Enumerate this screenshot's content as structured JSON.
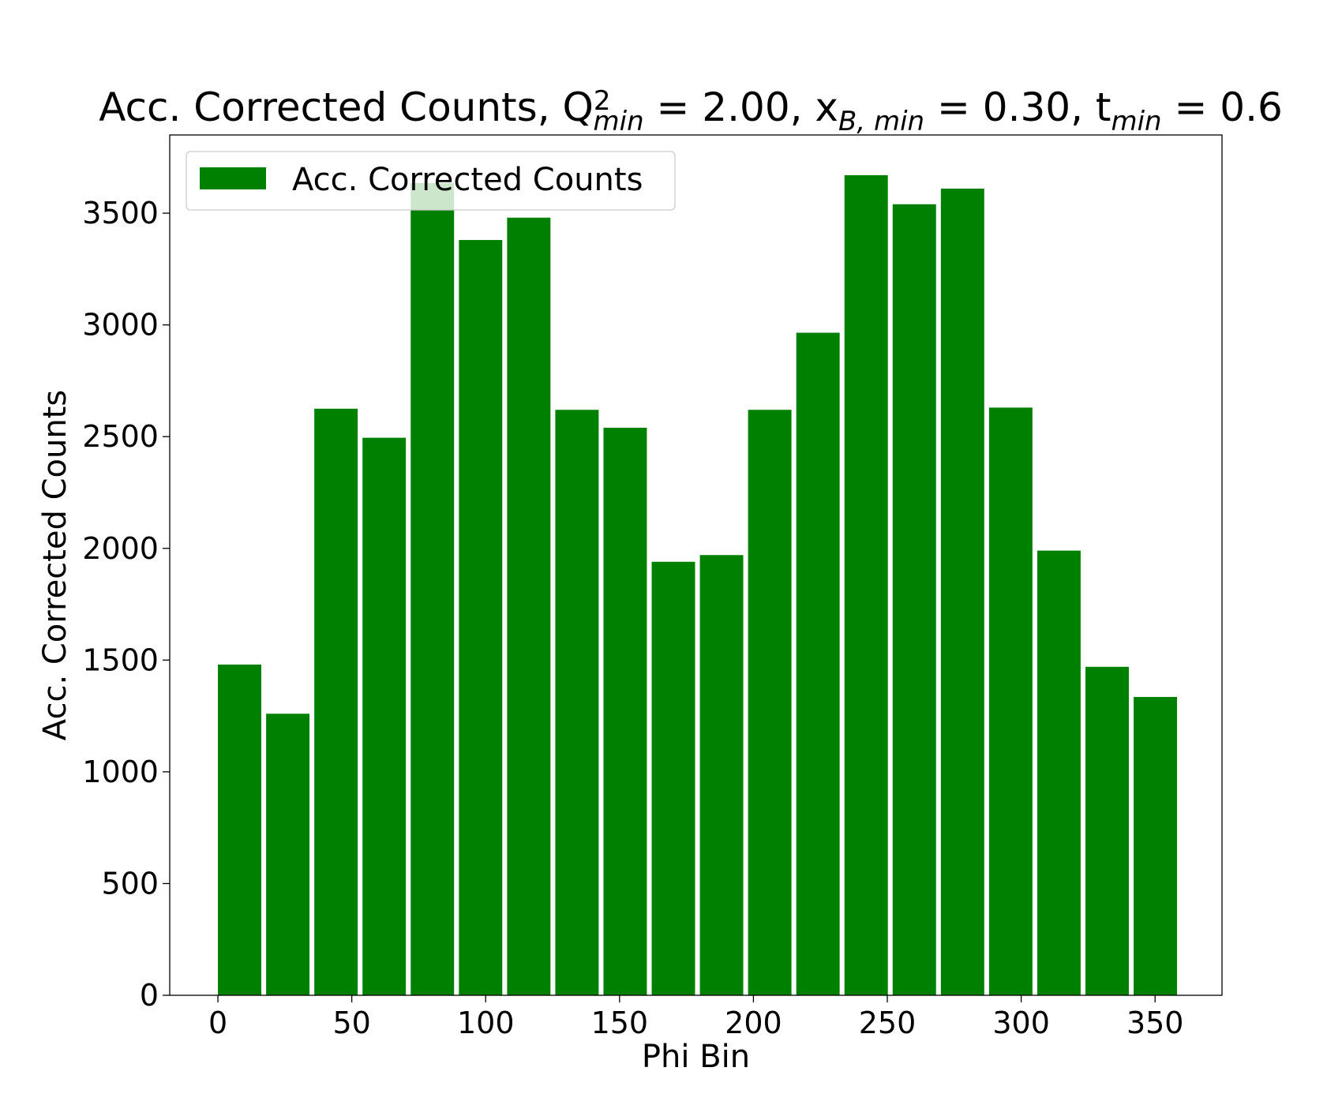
{
  "chart_data": {
    "type": "bar",
    "title": {
      "parts": [
        {
          "text": "Acc. Corrected Counts, Q",
          "style": "normal"
        },
        {
          "text": "2",
          "style": "sup"
        },
        {
          "text": "min",
          "style": "sub-italic"
        },
        {
          "text": " = 2.00, x",
          "style": "normal"
        },
        {
          "text": "B, min",
          "style": "sub-italic"
        },
        {
          "text": " = 0.30, t",
          "style": "normal"
        },
        {
          "text": "min",
          "style": "sub-italic"
        },
        {
          "text": " = 0.6",
          "style": "normal"
        }
      ]
    },
    "xlabel": "Phi Bin",
    "ylabel": "Acc. Corrected Counts",
    "xlim": [
      -18,
      375
    ],
    "ylim": [
      0,
      3850
    ],
    "xticks": [
      0,
      50,
      100,
      150,
      200,
      250,
      300,
      350
    ],
    "yticks": [
      0,
      500,
      1000,
      1500,
      2000,
      2500,
      3000,
      3500
    ],
    "bar_width": 16.2,
    "color": "#008000",
    "legend": {
      "position": "top-left",
      "label": "Acc. Corrected Counts"
    },
    "grid": false,
    "series": [
      {
        "name": "Acc. Corrected Counts",
        "x": [
          0,
          18,
          36,
          54,
          72,
          90,
          108,
          126,
          144,
          162,
          180,
          198,
          216,
          234,
          252,
          270,
          288,
          306,
          324,
          342
        ],
        "values": [
          1480,
          1260,
          2625,
          2495,
          3635,
          3380,
          3480,
          2620,
          2540,
          1940,
          1970,
          2620,
          2965,
          3670,
          3540,
          3610,
          2630,
          1990,
          1470,
          1335
        ]
      }
    ]
  }
}
